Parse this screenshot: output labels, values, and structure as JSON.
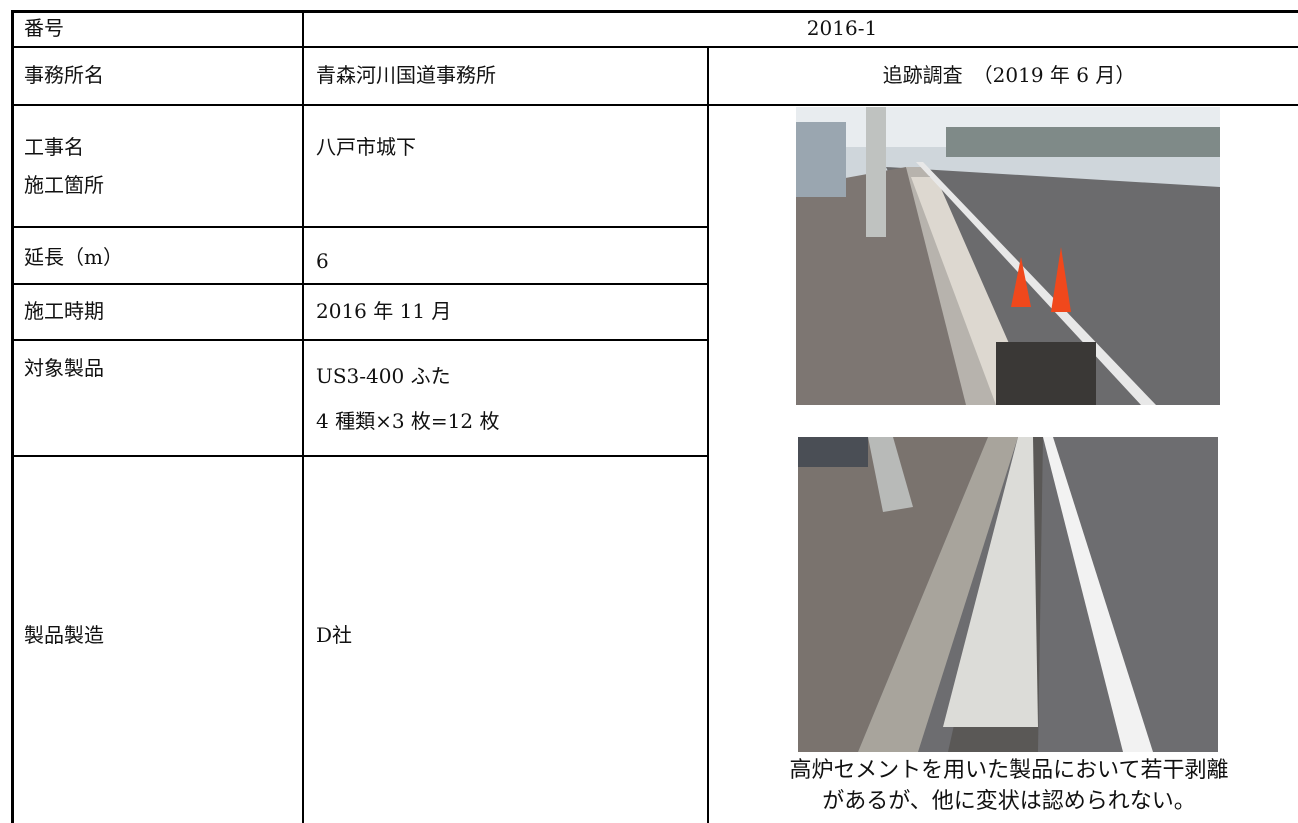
{
  "header": {
    "number_label": "番号",
    "number": "2016-1"
  },
  "office": {
    "label": "事務所名",
    "value": "青森河川国道事務所",
    "survey": "追跡調査　（2019 年 6 月）"
  },
  "rows": [
    {
      "label": [
        "工事名",
        "施工箇所"
      ],
      "value": [
        "八戸市城下"
      ]
    },
    {
      "label": [
        "延長（m）"
      ],
      "value": [
        "6"
      ]
    },
    {
      "label": [
        "施工時期"
      ],
      "value": [
        "2016 年 11 月"
      ]
    },
    {
      "label": [
        "対象製品"
      ],
      "value": [
        "US3-400 ふた",
        "4 種類×3 枚=12 枚"
      ]
    },
    {
      "label": [
        "製品製造"
      ],
      "value": [
        "D社"
      ]
    }
  ],
  "caption": [
    "高炉セメントを用いた製品において若干剥離",
    "があるが、他に変状は認められない。"
  ]
}
